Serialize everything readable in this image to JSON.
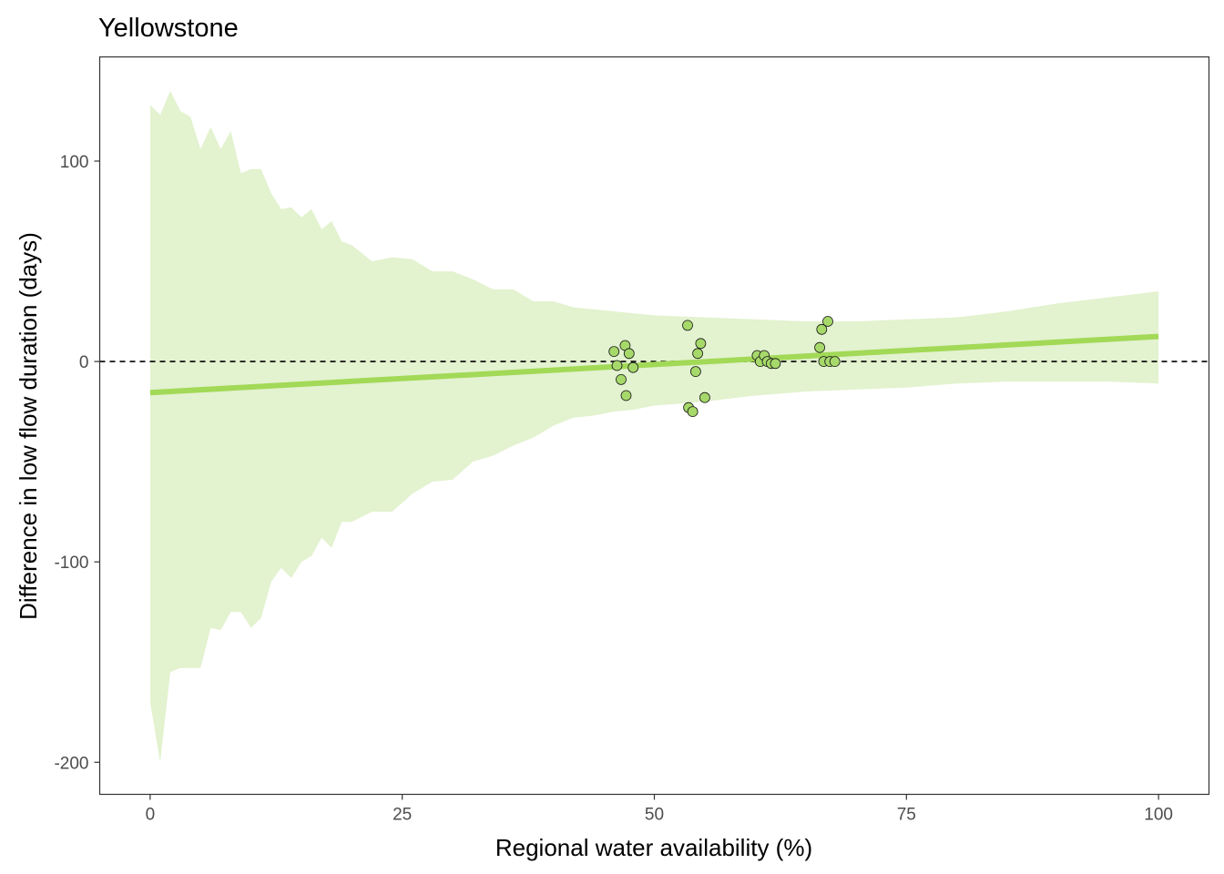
{
  "chart_data": {
    "type": "line",
    "title": "Yellowstone",
    "xlabel": "Regional water availability (%)",
    "ylabel": "Difference in low flow duration (days)",
    "xlim": [
      -5,
      105
    ],
    "ylim": [
      -216,
      152
    ],
    "xticks": [
      0,
      25,
      50,
      75,
      100
    ],
    "xtick_labels": [
      "0",
      "25",
      "50",
      "75",
      "100"
    ],
    "yticks": [
      -200,
      -100,
      0,
      100
    ],
    "ytick_labels": [
      "-200",
      "-100",
      "0",
      "100"
    ],
    "grid": false,
    "reference_line": {
      "y": 0,
      "style": "dashed"
    },
    "series": [
      {
        "kind": "line",
        "x": [
          0,
          100
        ],
        "values": [
          -15.5,
          12.5
        ]
      },
      {
        "kind": "ribbon",
        "x": [
          0,
          1,
          2,
          3,
          4,
          5,
          6,
          7,
          8,
          9,
          10,
          11,
          12,
          13,
          14,
          15,
          16,
          17,
          18,
          19,
          20,
          22,
          24,
          26,
          28,
          30,
          32,
          34,
          36,
          38,
          40,
          42,
          44,
          46,
          48,
          50,
          55,
          60,
          65,
          70,
          75,
          80,
          85,
          90,
          95,
          100
        ],
        "upper": [
          128,
          123,
          135,
          125,
          122,
          106,
          117,
          106,
          115,
          94,
          96,
          96,
          84,
          76,
          77,
          72,
          76,
          66,
          70,
          60,
          58,
          50,
          52,
          51,
          45,
          45,
          41,
          36,
          36,
          30,
          30,
          27,
          26,
          25,
          24,
          23,
          22,
          21,
          20,
          20,
          21,
          22,
          25,
          29,
          32,
          35
        ],
        "lower": [
          -170,
          -200,
          -155,
          -153,
          -153,
          -153,
          -133,
          -134,
          -125,
          -125,
          -133,
          -128,
          -110,
          -103,
          -108,
          -100,
          -97,
          -88,
          -93,
          -80,
          -80,
          -75,
          -75,
          -66,
          -60,
          -59,
          -50,
          -47,
          -42,
          -38,
          -32,
          -28,
          -27,
          -25,
          -24,
          -22,
          -20,
          -17,
          -15,
          -14,
          -13,
          -11,
          -10,
          -10,
          -10,
          -11
        ]
      },
      {
        "kind": "scatter",
        "points": [
          [
            46,
            5
          ],
          [
            46.3,
            -2
          ],
          [
            46.7,
            -9
          ],
          [
            47.1,
            8
          ],
          [
            47.2,
            -17
          ],
          [
            47.5,
            4
          ],
          [
            47.9,
            -3
          ],
          [
            53.3,
            18
          ],
          [
            53.4,
            -23
          ],
          [
            53.8,
            -25
          ],
          [
            54.1,
            -5
          ],
          [
            54.3,
            4
          ],
          [
            54.6,
            9
          ],
          [
            55,
            -18
          ],
          [
            60.2,
            3
          ],
          [
            60.5,
            0
          ],
          [
            60.9,
            3
          ],
          [
            61.2,
            0
          ],
          [
            61.6,
            -1
          ],
          [
            62,
            -1
          ],
          [
            66.4,
            7
          ],
          [
            66.6,
            16
          ],
          [
            66.8,
            0
          ],
          [
            67.2,
            20
          ],
          [
            67.4,
            0
          ],
          [
            67.9,
            0
          ]
        ]
      }
    ],
    "colors": {
      "ribbon": "#e3f2cf",
      "line": "#a2d957",
      "points_fill": "#a6d96a",
      "points_stroke": "#1a1a1a",
      "panel_border": "#333333",
      "tick_label": "#4d4d4d"
    }
  }
}
